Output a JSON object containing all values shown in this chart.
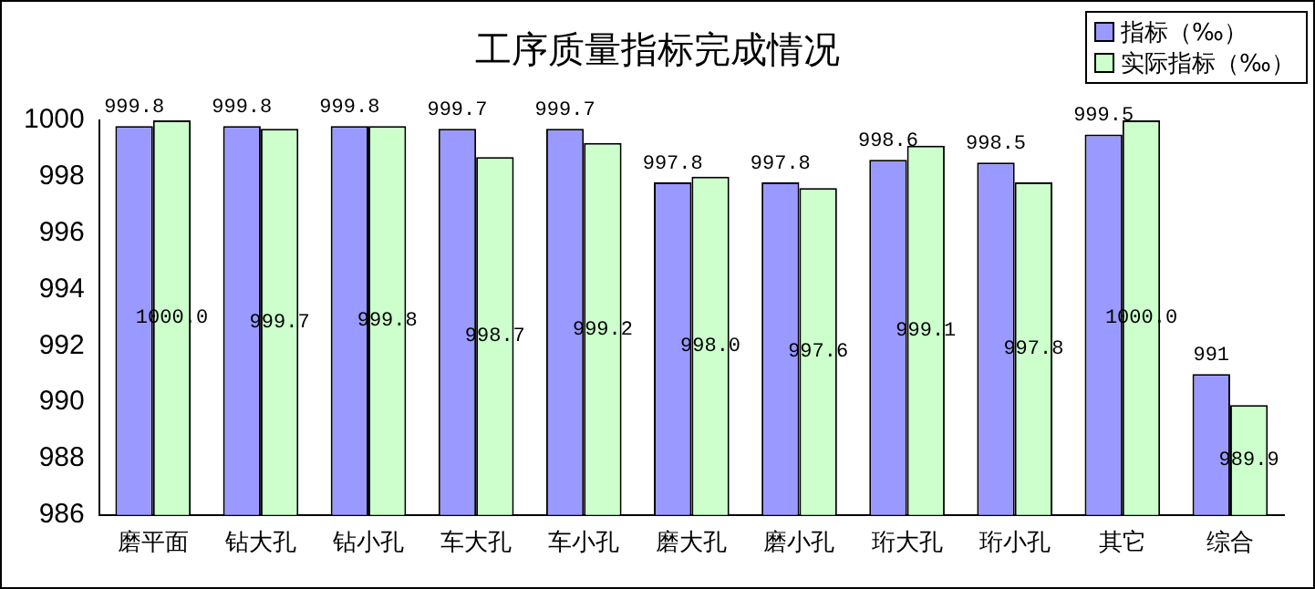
{
  "chart_data": {
    "type": "bar",
    "title": "工序质量指标完成情况",
    "categories": [
      "磨平面",
      "钻大孔",
      "钻小孔",
      "车大孔",
      "车小孔",
      "磨大孔",
      "磨小孔",
      "珩大孔",
      "珩小孔",
      "其它",
      "综合"
    ],
    "series": [
      {
        "name": "指标（‰）",
        "color": "#9999ff",
        "values": [
          999.8,
          999.8,
          999.8,
          999.7,
          999.7,
          997.8,
          997.8,
          998.6,
          998.5,
          999.5,
          991
        ],
        "value_labels": [
          "999.8",
          "999.8",
          "999.8",
          "999.7",
          "999.7",
          "997.8",
          "997.8",
          "998.6",
          "998.5",
          "999.5",
          "991"
        ]
      },
      {
        "name": "实际指标（‰）",
        "color": "#ccffcc",
        "values": [
          1000.0,
          999.7,
          999.8,
          998.7,
          999.2,
          998.0,
          997.6,
          999.1,
          997.8,
          1000.0,
          989.9
        ],
        "value_labels": [
          "1000.0",
          "999.7",
          "999.8",
          "998.7",
          "999.2",
          "998.0",
          "997.6",
          "999.1",
          "997.8",
          "1000.0",
          "989.9"
        ]
      }
    ],
    "ylim": [
      986,
      1000
    ],
    "yticks": [
      986,
      988,
      990,
      992,
      994,
      996,
      998,
      1000
    ],
    "grid": false,
    "legend": "top right"
  }
}
